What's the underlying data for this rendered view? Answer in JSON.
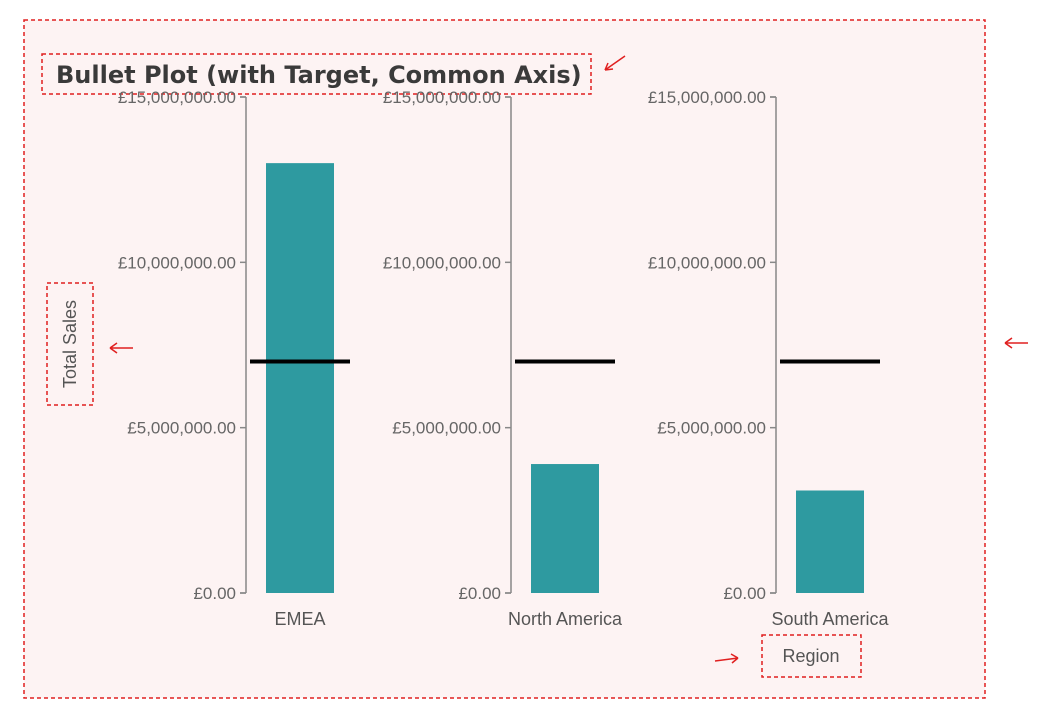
{
  "chart_data": {
    "type": "bar",
    "subtype": "bullet",
    "title": "Bullet Plot (with Target, Common Axis)",
    "xlabel": "Region",
    "ylabel": "Total Sales",
    "categories": [
      "EMEA",
      "North America",
      "South America"
    ],
    "values": [
      13000000,
      3900000,
      3100000
    ],
    "targets": [
      7000000,
      7000000,
      7000000
    ],
    "ylim": [
      0,
      15000000
    ],
    "yticks": [
      0,
      5000000,
      10000000,
      15000000
    ],
    "ytick_labels": [
      "£0.00",
      "£5,000,000.00",
      "£10,000,000.00",
      "£15,000,000.00"
    ],
    "colors": {
      "bar": "#2e9aa0",
      "target": "#000000",
      "axis": "#888888",
      "background": "#fdf3f3",
      "annotation": "#e02020"
    }
  }
}
